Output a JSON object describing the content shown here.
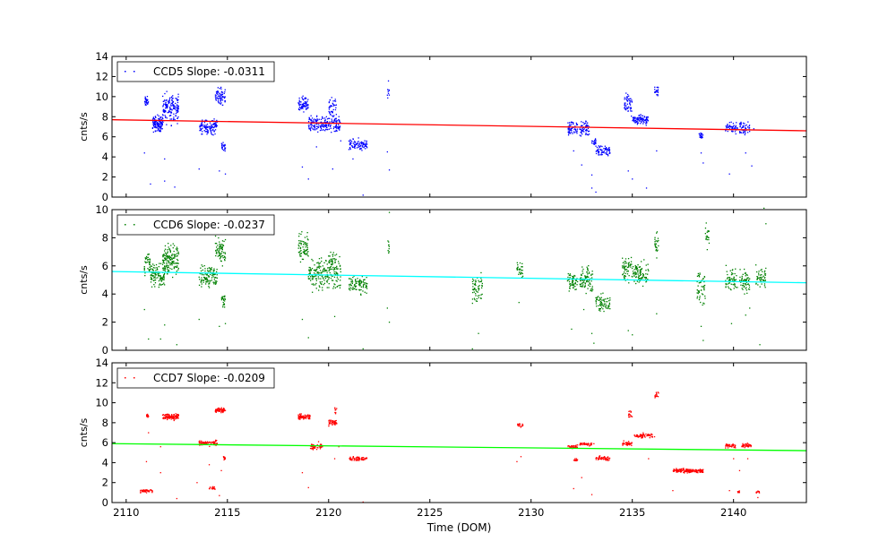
{
  "chart_data": [
    {
      "type": "scatter",
      "ylabel": "cnts/s",
      "ylim": [
        0,
        14
      ],
      "yticks": [
        0,
        2,
        4,
        6,
        8,
        10,
        12,
        14
      ],
      "xlim": [
        2109.3,
        2143.6
      ],
      "show_x_tick_labels": false,
      "legend": "CCD5 Slope: -0.0311",
      "legend_position": "top-left",
      "point_color": "#0000ff",
      "fit_color": "#ff0000",
      "fit_line": {
        "x": [
          2109.3,
          2143.6
        ],
        "y": [
          7.7,
          6.6
        ]
      },
      "clusters": [
        {
          "x": [
            2110.9,
            2111.1
          ],
          "y": [
            8.8,
            10.2
          ],
          "n": 30
        },
        {
          "x": [
            2111.3,
            2111.8
          ],
          "y": [
            6.2,
            8.4
          ],
          "n": 120
        },
        {
          "x": [
            2111.8,
            2112.6
          ],
          "y": [
            6.8,
            11.0
          ],
          "n": 150
        },
        {
          "x": [
            2113.6,
            2114.5
          ],
          "y": [
            6.0,
            8.0
          ],
          "n": 110
        },
        {
          "x": [
            2114.4,
            2114.9
          ],
          "y": [
            8.8,
            11.2
          ],
          "n": 70
        },
        {
          "x": [
            2114.7,
            2114.9
          ],
          "y": [
            4.4,
            5.8
          ],
          "n": 25
        },
        {
          "x": [
            2118.5,
            2119.0
          ],
          "y": [
            8.2,
            10.2
          ],
          "n": 70
        },
        {
          "x": [
            2119.0,
            2120.6
          ],
          "y": [
            6.0,
            8.4
          ],
          "n": 200
        },
        {
          "x": [
            2120.0,
            2120.4
          ],
          "y": [
            7.2,
            10.5
          ],
          "n": 40
        },
        {
          "x": [
            2121.0,
            2121.9
          ],
          "y": [
            4.4,
            6.0
          ],
          "n": 90
        },
        {
          "x": [
            2122.9,
            2123.0
          ],
          "y": [
            8.8,
            11.8
          ],
          "n": 10
        },
        {
          "x": [
            2131.8,
            2132.3
          ],
          "y": [
            5.8,
            8.0
          ],
          "n": 60
        },
        {
          "x": [
            2132.4,
            2132.9
          ],
          "y": [
            5.8,
            7.8
          ],
          "n": 60
        },
        {
          "x": [
            2133.0,
            2133.2
          ],
          "y": [
            5.0,
            6.0
          ],
          "n": 20
        },
        {
          "x": [
            2133.2,
            2133.9
          ],
          "y": [
            3.8,
            5.6
          ],
          "n": 70
        },
        {
          "x": [
            2134.6,
            2135.0
          ],
          "y": [
            7.6,
            10.8
          ],
          "n": 50
        },
        {
          "x": [
            2135.0,
            2135.8
          ],
          "y": [
            7.0,
            8.4
          ],
          "n": 90
        },
        {
          "x": [
            2136.1,
            2136.3
          ],
          "y": [
            9.8,
            11.4
          ],
          "n": 20
        },
        {
          "x": [
            2138.3,
            2138.5
          ],
          "y": [
            5.6,
            6.6
          ],
          "n": 20
        },
        {
          "x": [
            2139.6,
            2140.2
          ],
          "y": [
            6.2,
            7.6
          ],
          "n": 50
        },
        {
          "x": [
            2140.3,
            2140.8
          ],
          "y": [
            5.8,
            8.0
          ],
          "n": 50
        }
      ],
      "outliers": [
        [
          2110.9,
          4.4
        ],
        [
          2111.2,
          1.3
        ],
        [
          2111.9,
          1.6
        ],
        [
          2112.4,
          1.0
        ],
        [
          2111.9,
          3.8
        ],
        [
          2113.6,
          2.8
        ],
        [
          2114.6,
          2.6
        ],
        [
          2114.9,
          2.3
        ],
        [
          2118.7,
          3.0
        ],
        [
          2119.0,
          1.8
        ],
        [
          2119.4,
          5.0
        ],
        [
          2120.2,
          2.8
        ],
        [
          2120.6,
          5.6
        ],
        [
          2121.2,
          3.8
        ],
        [
          2121.7,
          0.2
        ],
        [
          2122.9,
          4.5
        ],
        [
          2123.0,
          2.7
        ],
        [
          2132.1,
          4.6
        ],
        [
          2132.5,
          3.2
        ],
        [
          2133.0,
          2.2
        ],
        [
          2133.0,
          0.9
        ],
        [
          2133.2,
          0.5
        ],
        [
          2134.8,
          2.6
        ],
        [
          2135.0,
          1.8
        ],
        [
          2135.7,
          0.9
        ],
        [
          2136.2,
          4.6
        ],
        [
          2138.4,
          4.4
        ],
        [
          2138.5,
          3.4
        ],
        [
          2139.8,
          2.3
        ],
        [
          2140.6,
          4.4
        ],
        [
          2140.9,
          3.1
        ],
        [
          2141.0,
          6.8
        ]
      ]
    },
    {
      "type": "scatter",
      "ylabel": "cnts/s",
      "ylim": [
        0,
        10
      ],
      "yticks": [
        0,
        2,
        4,
        6,
        8,
        10
      ],
      "xlim": [
        2109.3,
        2143.6
      ],
      "show_x_tick_labels": false,
      "legend": "CCD6 Slope: -0.0237",
      "legend_position": "top-left",
      "point_color": "#008000",
      "fit_color": "#00ffff",
      "fit_line": {
        "x": [
          2109.3,
          2143.6
        ],
        "y": [
          5.6,
          4.8
        ]
      },
      "clusters": [
        {
          "x": [
            2110.9,
            2111.2
          ],
          "y": [
            5.0,
            7.4
          ],
          "n": 40
        },
        {
          "x": [
            2111.2,
            2111.9
          ],
          "y": [
            4.2,
            6.4
          ],
          "n": 110
        },
        {
          "x": [
            2111.8,
            2112.6
          ],
          "y": [
            5.0,
            8.0
          ],
          "n": 150
        },
        {
          "x": [
            2113.6,
            2114.5
          ],
          "y": [
            4.2,
            6.4
          ],
          "n": 110
        },
        {
          "x": [
            2114.4,
            2114.9
          ],
          "y": [
            5.6,
            8.4
          ],
          "n": 70
        },
        {
          "x": [
            2114.7,
            2114.9
          ],
          "y": [
            2.8,
            4.2
          ],
          "n": 25
        },
        {
          "x": [
            2118.5,
            2119.0
          ],
          "y": [
            6.0,
            8.6
          ],
          "n": 70
        },
        {
          "x": [
            2119.0,
            2120.6
          ],
          "y": [
            3.8,
            7.0
          ],
          "n": 200
        },
        {
          "x": [
            2120.0,
            2120.4
          ],
          "y": [
            5.0,
            7.6
          ],
          "n": 40
        },
        {
          "x": [
            2121.0,
            2121.9
          ],
          "y": [
            3.8,
            5.6
          ],
          "n": 90
        },
        {
          "x": [
            2122.9,
            2123.0
          ],
          "y": [
            6.0,
            8.5
          ],
          "n": 10
        },
        {
          "x": [
            2127.1,
            2127.6
          ],
          "y": [
            2.8,
            5.8
          ],
          "n": 60
        },
        {
          "x": [
            2129.3,
            2129.6
          ],
          "y": [
            4.8,
            6.8
          ],
          "n": 30
        },
        {
          "x": [
            2131.8,
            2132.3
          ],
          "y": [
            3.8,
            5.8
          ],
          "n": 60
        },
        {
          "x": [
            2132.4,
            2133.1
          ],
          "y": [
            3.8,
            6.4
          ],
          "n": 90
        },
        {
          "x": [
            2133.2,
            2133.9
          ],
          "y": [
            2.4,
            4.2
          ],
          "n": 70
        },
        {
          "x": [
            2134.5,
            2135.0
          ],
          "y": [
            4.4,
            7.2
          ],
          "n": 60
        },
        {
          "x": [
            2135.0,
            2135.8
          ],
          "y": [
            4.2,
            6.6
          ],
          "n": 90
        },
        {
          "x": [
            2136.1,
            2136.3
          ],
          "y": [
            6.4,
            8.8
          ],
          "n": 25
        },
        {
          "x": [
            2138.2,
            2138.6
          ],
          "y": [
            2.8,
            6.2
          ],
          "n": 50
        },
        {
          "x": [
            2138.6,
            2138.8
          ],
          "y": [
            6.8,
            9.6
          ],
          "n": 20
        },
        {
          "x": [
            2139.6,
            2140.2
          ],
          "y": [
            3.8,
            6.2
          ],
          "n": 60
        },
        {
          "x": [
            2140.3,
            2140.8
          ],
          "y": [
            3.8,
            6.0
          ],
          "n": 60
        },
        {
          "x": [
            2141.1,
            2141.6
          ],
          "y": [
            4.2,
            6.2
          ],
          "n": 50
        }
      ],
      "outliers": [
        [
          2110.9,
          2.9
        ],
        [
          2111.1,
          0.8
        ],
        [
          2111.7,
          0.8
        ],
        [
          2111.9,
          1.8
        ],
        [
          2112.5,
          0.4
        ],
        [
          2113.6,
          2.2
        ],
        [
          2114.6,
          1.7
        ],
        [
          2114.9,
          1.9
        ],
        [
          2118.7,
          2.2
        ],
        [
          2119.0,
          0.9
        ],
        [
          2120.3,
          2.4
        ],
        [
          2121.7,
          0.1
        ],
        [
          2122.9,
          3.0
        ],
        [
          2123.0,
          2.0
        ],
        [
          2123.0,
          9.8
        ],
        [
          2127.4,
          1.2
        ],
        [
          2127.1,
          0.1
        ],
        [
          2129.4,
          3.4
        ],
        [
          2132.0,
          1.5
        ],
        [
          2132.6,
          2.9
        ],
        [
          2133.0,
          1.2
        ],
        [
          2133.1,
          0.5
        ],
        [
          2134.8,
          1.4
        ],
        [
          2135.0,
          1.1
        ],
        [
          2136.2,
          2.6
        ],
        [
          2138.4,
          1.7
        ],
        [
          2138.5,
          0.7
        ],
        [
          2139.9,
          1.9
        ],
        [
          2140.6,
          2.5
        ],
        [
          2140.8,
          3.0
        ],
        [
          2141.3,
          0.4
        ],
        [
          2141.6,
          9.0
        ],
        [
          2141.5,
          10.1
        ]
      ]
    },
    {
      "type": "scatter",
      "ylabel": "cnts/s",
      "xlabel": "Time (DOM)",
      "ylim": [
        0,
        14
      ],
      "yticks": [
        0,
        2,
        4,
        6,
        8,
        10,
        12,
        14
      ],
      "xlim": [
        2109.3,
        2143.6
      ],
      "xticks": [
        2110,
        2115,
        2120,
        2125,
        2130,
        2135,
        2140
      ],
      "xtick_labels": [
        "2110",
        "2115",
        "2120",
        "2125",
        "2130",
        "2135",
        "2140"
      ],
      "show_x_tick_labels": true,
      "legend": "CCD7 Slope: -0.0209",
      "legend_position": "top-left",
      "point_color": "#ff0000",
      "fit_color": "#00ff00",
      "fit_line": {
        "x": [
          2109.3,
          2143.6
        ],
        "y": [
          5.9,
          5.2
        ]
      },
      "clusters": [
        {
          "x": [
            2110.7,
            2111.3
          ],
          "y": [
            0.95,
            1.35
          ],
          "n": 40
        },
        {
          "x": [
            2111.0,
            2111.1
          ],
          "y": [
            8.4,
            9.0
          ],
          "n": 15
        },
        {
          "x": [
            2111.8,
            2112.6
          ],
          "y": [
            8.2,
            9.0
          ],
          "n": 110
        },
        {
          "x": [
            2113.6,
            2114.5
          ],
          "y": [
            5.6,
            6.3
          ],
          "n": 80
        },
        {
          "x": [
            2114.1,
            2114.4
          ],
          "y": [
            1.2,
            1.7
          ],
          "n": 20
        },
        {
          "x": [
            2114.4,
            2114.9
          ],
          "y": [
            8.9,
            9.6
          ],
          "n": 60
        },
        {
          "x": [
            2114.8,
            2114.9
          ],
          "y": [
            4.2,
            4.7
          ],
          "n": 15
        },
        {
          "x": [
            2118.5,
            2119.1
          ],
          "y": [
            8.2,
            9.0
          ],
          "n": 70
        },
        {
          "x": [
            2119.1,
            2119.7
          ],
          "y": [
            5.2,
            5.9
          ],
          "n": 50
        },
        {
          "x": [
            2120.0,
            2120.4
          ],
          "y": [
            7.5,
            8.6
          ],
          "n": 40
        },
        {
          "x": [
            2120.3,
            2120.4
          ],
          "y": [
            8.6,
            9.8
          ],
          "n": 10
        },
        {
          "x": [
            2121.0,
            2121.9
          ],
          "y": [
            4.1,
            4.7
          ],
          "n": 70
        },
        {
          "x": [
            2129.3,
            2129.6
          ],
          "y": [
            7.5,
            8.1
          ],
          "n": 20
        },
        {
          "x": [
            2131.8,
            2132.3
          ],
          "y": [
            5.3,
            5.9
          ],
          "n": 40
        },
        {
          "x": [
            2132.1,
            2132.3
          ],
          "y": [
            4.0,
            4.5
          ],
          "n": 15
        },
        {
          "x": [
            2132.4,
            2133.0
          ],
          "y": [
            5.6,
            6.1
          ],
          "n": 40
        },
        {
          "x": [
            2133.2,
            2133.9
          ],
          "y": [
            4.1,
            4.8
          ],
          "n": 50
        },
        {
          "x": [
            2134.5,
            2135.0
          ],
          "y": [
            5.6,
            6.2
          ],
          "n": 40
        },
        {
          "x": [
            2134.8,
            2135.0
          ],
          "y": [
            8.2,
            9.6
          ],
          "n": 15
        },
        {
          "x": [
            2135.1,
            2136.0
          ],
          "y": [
            6.4,
            7.0
          ],
          "n": 70
        },
        {
          "x": [
            2136.1,
            2136.3
          ],
          "y": [
            10.4,
            11.2
          ],
          "n": 15
        },
        {
          "x": [
            2137.0,
            2138.5
          ],
          "y": [
            2.9,
            3.5
          ],
          "n": 160
        },
        {
          "x": [
            2139.6,
            2140.1
          ],
          "y": [
            5.4,
            6.0
          ],
          "n": 40
        },
        {
          "x": [
            2140.2,
            2140.3
          ],
          "y": [
            0.9,
            1.3
          ],
          "n": 10
        },
        {
          "x": [
            2140.4,
            2140.9
          ],
          "y": [
            5.4,
            6.0
          ],
          "n": 40
        },
        {
          "x": [
            2141.1,
            2141.3
          ],
          "y": [
            0.9,
            1.3
          ],
          "n": 10
        }
      ],
      "outliers": [
        [
          2111.0,
          4.1
        ],
        [
          2111.1,
          7.0
        ],
        [
          2111.7,
          5.6
        ],
        [
          2111.7,
          3.0
        ],
        [
          2112.5,
          0.4
        ],
        [
          2113.5,
          2.0
        ],
        [
          2114.1,
          3.8
        ],
        [
          2114.6,
          0.7
        ],
        [
          2114.7,
          3.2
        ],
        [
          2118.7,
          3.0
        ],
        [
          2119.0,
          1.5
        ],
        [
          2119.5,
          6.1
        ],
        [
          2120.5,
          5.6
        ],
        [
          2120.3,
          4.4
        ],
        [
          2121.7,
          0.05
        ],
        [
          2129.3,
          4.1
        ],
        [
          2129.5,
          4.6
        ],
        [
          2132.1,
          1.4
        ],
        [
          2132.5,
          2.5
        ],
        [
          2133.1,
          5.9
        ],
        [
          2133.0,
          0.8
        ],
        [
          2135.8,
          4.4
        ],
        [
          2136.1,
          6.6
        ],
        [
          2137.0,
          1.2
        ],
        [
          2139.8,
          1.2
        ],
        [
          2140.0,
          4.4
        ],
        [
          2140.3,
          3.2
        ],
        [
          2140.7,
          4.4
        ],
        [
          2141.2,
          0.5
        ]
      ]
    }
  ]
}
